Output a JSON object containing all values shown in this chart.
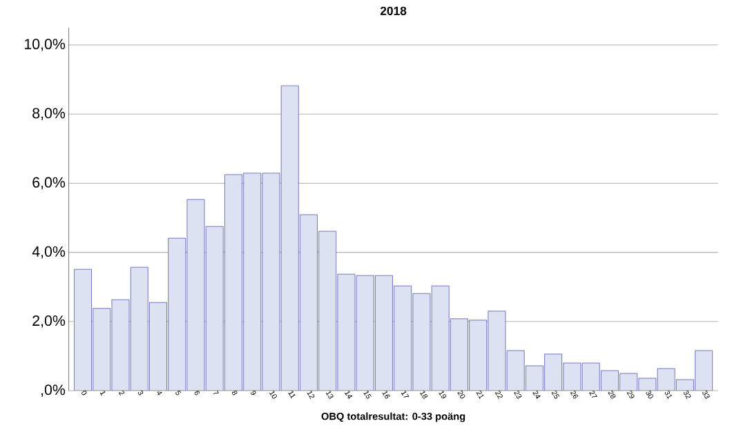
{
  "chart_data": {
    "type": "bar",
    "title": "2018",
    "xlabel": "OBQ totalresultat: 0-33 poäng",
    "categories": [
      "0",
      "1",
      "2",
      "3",
      "4",
      "5",
      "6",
      "7",
      "8",
      "9",
      "10",
      "11",
      "12",
      "13",
      "14",
      "15",
      "16",
      "17",
      "18",
      "19",
      "20",
      "21",
      "22",
      "23",
      "24",
      "25",
      "26",
      "27",
      "28",
      "29",
      "30",
      "31",
      "32",
      "33"
    ],
    "values": [
      3.51,
      2.38,
      2.63,
      3.57,
      2.55,
      4.41,
      5.53,
      4.75,
      6.25,
      6.29,
      6.29,
      8.82,
      5.09,
      4.61,
      3.37,
      3.33,
      3.33,
      3.03,
      2.81,
      3.03,
      2.08,
      2.04,
      2.3,
      1.16,
      0.72,
      1.06,
      0.8,
      0.8,
      0.58,
      0.5,
      0.36,
      0.64,
      0.32,
      1.16
    ],
    "color": "#dde2f2",
    "ylim": [
      0,
      10.5
    ],
    "yticks": [
      {
        "value": 0,
        "label": ",0%"
      },
      {
        "value": 2,
        "label": "2,0%"
      },
      {
        "value": 4,
        "label": "4,0%"
      },
      {
        "value": 6,
        "label": "6,0%"
      },
      {
        "value": 8,
        "label": "8,0%"
      },
      {
        "value": 10,
        "label": "10,0%"
      }
    ],
    "grid": "y"
  }
}
